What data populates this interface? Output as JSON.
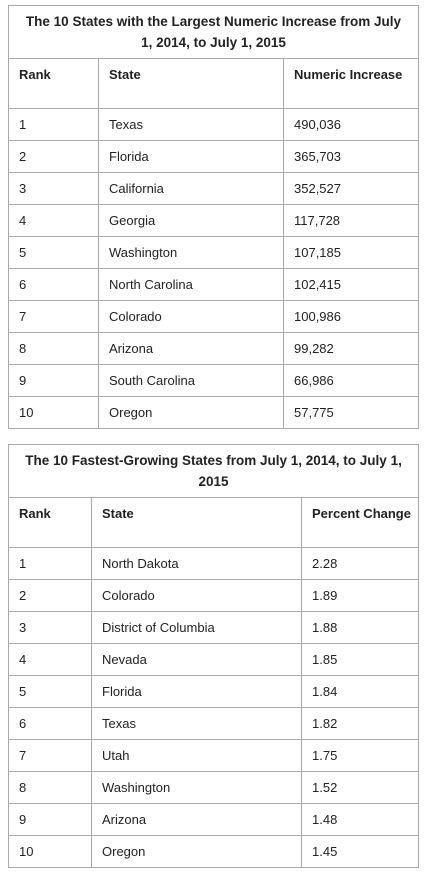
{
  "table1": {
    "title": "The 10 States with the Largest Numeric Increase from July 1, 2014, to July 1, 2015",
    "headers": [
      "Rank",
      "State",
      "Numeric Increase"
    ],
    "rows": [
      [
        "1",
        "Texas",
        "490,036"
      ],
      [
        "2",
        "Florida",
        "365,703"
      ],
      [
        "3",
        "California",
        "352,527"
      ],
      [
        "4",
        "Georgia",
        "117,728"
      ],
      [
        "5",
        "Washington",
        "107,185"
      ],
      [
        "6",
        "North Carolina",
        "102,415"
      ],
      [
        "7",
        "Colorado",
        "100,986"
      ],
      [
        "8",
        "Arizona",
        "99,282"
      ],
      [
        "9",
        "South Carolina",
        "66,986"
      ],
      [
        "10",
        "Oregon",
        "57,775"
      ]
    ]
  },
  "table2": {
    "title": "The 10 Fastest-Growing States from July 1, 2014, to July 1, 2015",
    "headers": [
      "Rank",
      "State",
      "Percent Change"
    ],
    "rows": [
      [
        "1",
        "North Dakota",
        "2.28"
      ],
      [
        "2",
        "Colorado",
        "1.89"
      ],
      [
        "3",
        "District of Columbia",
        "1.88"
      ],
      [
        "4",
        "Nevada",
        "1.85"
      ],
      [
        "5",
        "Florida",
        "1.84"
      ],
      [
        "6",
        "Texas",
        "1.82"
      ],
      [
        "7",
        "Utah",
        "1.75"
      ],
      [
        "8",
        "Washington",
        "1.52"
      ],
      [
        "9",
        "Arizona",
        "1.48"
      ],
      [
        "10",
        "Oregon",
        "1.45"
      ]
    ]
  }
}
